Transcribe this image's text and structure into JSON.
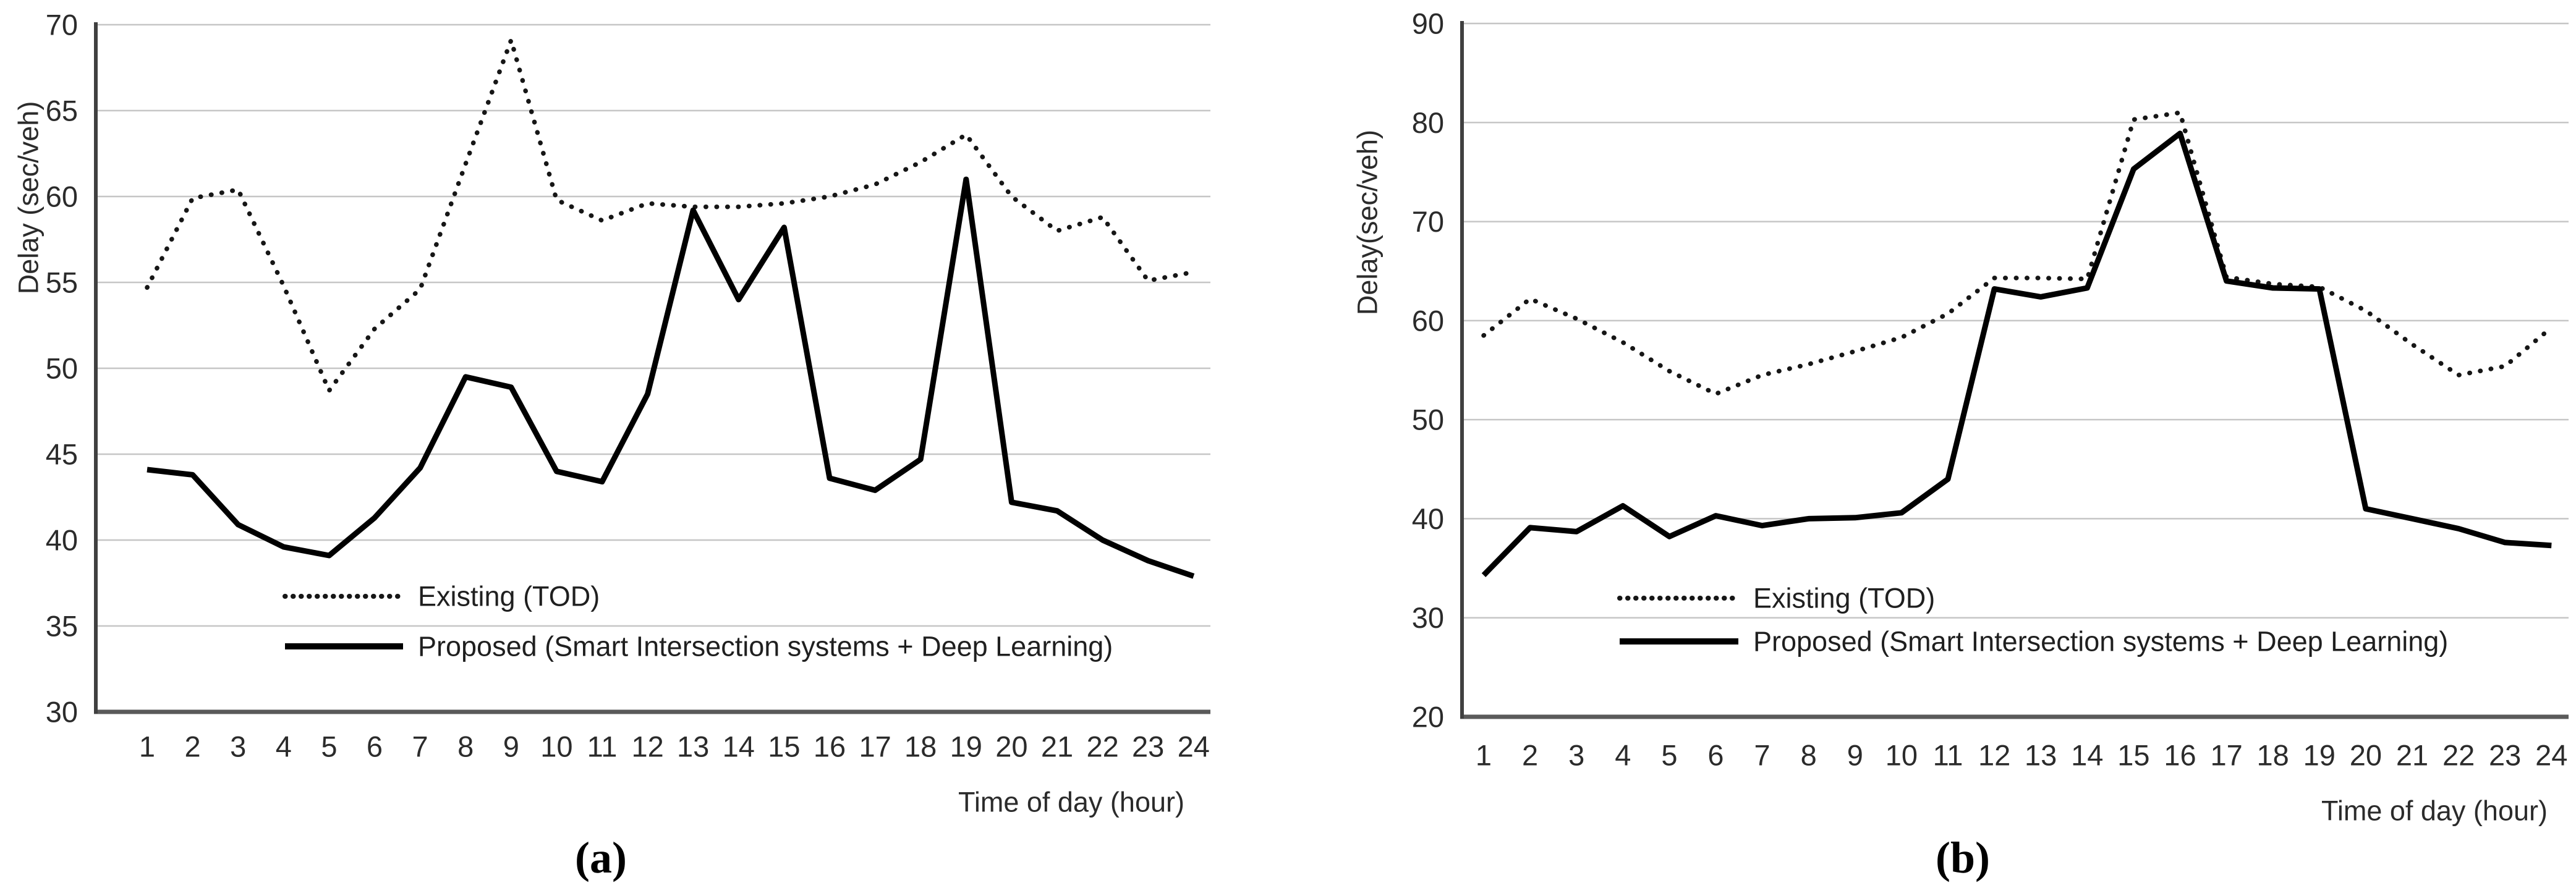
{
  "figure": {
    "background": "#ffffff",
    "text_color": "#2b2b2b",
    "series_color": "#111111",
    "grid_color": "#c6c6c6"
  },
  "chart_data": [
    {
      "id": "a",
      "type": "line",
      "caption": "(a)",
      "ylabel": "Delay (sec/veh)",
      "xlabel": "Time of day (hour)",
      "ylim": [
        30,
        70
      ],
      "ytick_step": 5,
      "yticks": [
        30,
        35,
        40,
        45,
        50,
        55,
        60,
        65,
        70
      ],
      "x": [
        1,
        2,
        3,
        4,
        5,
        6,
        7,
        8,
        9,
        10,
        11,
        12,
        13,
        14,
        15,
        16,
        17,
        18,
        19,
        20,
        21,
        22,
        23,
        24
      ],
      "grid": true,
      "legend_position": "inside-bottom-left",
      "series": [
        {
          "name": "Existing (TOD)",
          "style": "dotted",
          "values": [
            54.7,
            59.9,
            60.4,
            54.8,
            48.7,
            52.3,
            54.6,
            61.9,
            69.1,
            59.8,
            58.6,
            59.6,
            59.4,
            59.4,
            59.6,
            60.0,
            60.7,
            62.0,
            63.6,
            60.0,
            58.0,
            58.8,
            55.1,
            55.6
          ]
        },
        {
          "name": "Proposed (Smart Intersection systems + Deep Learning)",
          "style": "solid",
          "values": [
            44.1,
            43.8,
            40.9,
            39.6,
            39.1,
            41.3,
            44.2,
            49.5,
            48.9,
            44.0,
            43.4,
            48.5,
            59.2,
            54.0,
            58.2,
            43.6,
            42.9,
            44.7,
            61.0,
            42.2,
            41.7,
            40.0,
            38.8,
            37.9
          ]
        }
      ]
    },
    {
      "id": "b",
      "type": "line",
      "caption": "(b)",
      "ylabel": "Delay(sec/veh)",
      "xlabel": "Time of day (hour)",
      "ylim": [
        20,
        90
      ],
      "ytick_step": 10,
      "yticks": [
        20,
        30,
        40,
        50,
        60,
        70,
        80,
        90
      ],
      "x": [
        1,
        2,
        3,
        4,
        5,
        6,
        7,
        8,
        9,
        10,
        11,
        12,
        13,
        14,
        15,
        16,
        17,
        18,
        19,
        20,
        21,
        22,
        23,
        24
      ],
      "grid": true,
      "legend_position": "inside-bottom-left",
      "series": [
        {
          "name": "Existing (TOD)",
          "style": "dotted",
          "values": [
            58.5,
            62.2,
            60.2,
            57.8,
            54.9,
            52.6,
            54.5,
            55.6,
            56.9,
            58.3,
            60.7,
            64.3,
            64.3,
            64.2,
            80.3,
            81.0,
            64.4,
            63.7,
            63.4,
            61.0,
            57.6,
            54.5,
            55.4,
            59.3
          ]
        },
        {
          "name": "Proposed (Smart Intersection systems + Deep Learning)",
          "style": "solid",
          "values": [
            34.3,
            39.1,
            38.7,
            41.3,
            38.2,
            40.3,
            39.3,
            40.0,
            40.1,
            40.6,
            44.0,
            63.2,
            62.4,
            63.3,
            75.3,
            78.9,
            64.0,
            63.3,
            63.2,
            41.0,
            40.0,
            39.0,
            37.6,
            37.3
          ]
        }
      ]
    }
  ]
}
